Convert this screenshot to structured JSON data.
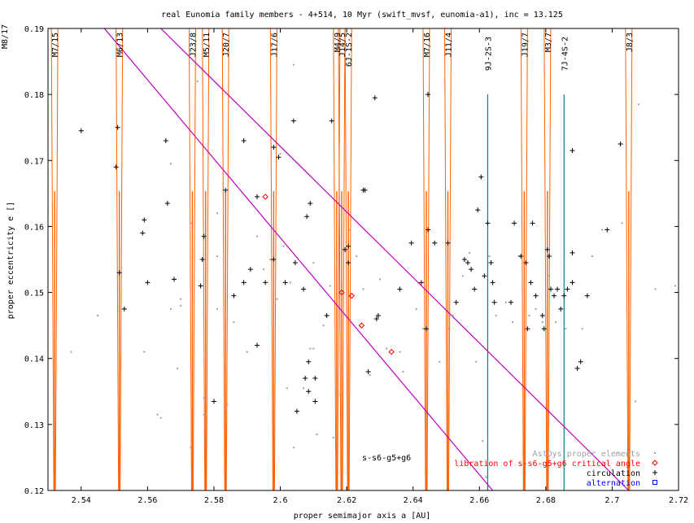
{
  "chart_data": {
    "type": "scatter",
    "title": "real Eunomia family members - 4+514, 10 Myr (swift_mvsf, eunomia-a1), inc = 13.125",
    "xlabel": "proper semimajor axis a [AU]",
    "ylabel": "proper eccentricity e []",
    "xlim": [
      2.53,
      2.72
    ],
    "ylim": [
      0.12,
      0.19
    ],
    "xticks": [
      "2.54",
      "2.56",
      "2.58",
      "2.6",
      "2.62",
      "2.64",
      "2.66",
      "2.68",
      "2.7",
      "2.72"
    ],
    "yticks": [
      "0.12",
      "0.13",
      "0.14",
      "0.15",
      "0.16",
      "0.17",
      "0.18",
      "0.19"
    ],
    "grid": false,
    "legend_position": "bottom-right",
    "colors": {
      "astdys": "#a0a0a0",
      "libration": "#ff0000",
      "circulation": "#000000",
      "alternation": "#0000ff",
      "resonance": "#ff6000",
      "secular": "#c000c0",
      "three_body": "#008080"
    },
    "series": [
      {
        "name": "AstDys proper elements",
        "marker": "dot",
        "points": [
          [
            2.532,
            0.1565
          ],
          [
            2.537,
            0.141
          ],
          [
            2.545,
            0.1465
          ],
          [
            2.559,
            0.141
          ],
          [
            2.563,
            0.1315
          ],
          [
            2.564,
            0.131
          ],
          [
            2.567,
            0.1475
          ],
          [
            2.567,
            0.1695
          ],
          [
            2.569,
            0.1385
          ],
          [
            2.57,
            0.148
          ],
          [
            2.57,
            0.149
          ],
          [
            2.573,
            0.1605
          ],
          [
            2.573,
            0.1265
          ],
          [
            2.575,
            0.182
          ],
          [
            2.577,
            0.134
          ],
          [
            2.577,
            0.1315
          ],
          [
            2.581,
            0.1555
          ],
          [
            2.581,
            0.1475
          ],
          [
            2.581,
            0.162
          ],
          [
            2.584,
            0.133
          ],
          [
            2.586,
            0.1455
          ],
          [
            2.59,
            0.141
          ],
          [
            2.593,
            0.1585
          ],
          [
            2.595,
            0.1535
          ],
          [
            2.597,
            0.155
          ],
          [
            2.599,
            0.149
          ],
          [
            2.6,
            0.171
          ],
          [
            2.601,
            0.157
          ],
          [
            2.602,
            0.1355
          ],
          [
            2.603,
            0.1515
          ],
          [
            2.604,
            0.1265
          ],
          [
            2.604,
            0.1845
          ],
          [
            2.607,
            0.1355
          ],
          [
            2.609,
            0.1415
          ],
          [
            2.61,
            0.1415
          ],
          [
            2.61,
            0.1545
          ],
          [
            2.611,
            0.1285
          ],
          [
            2.613,
            0.145
          ],
          [
            2.614,
            0.1465
          ],
          [
            2.615,
            0.151
          ],
          [
            2.616,
            0.128
          ],
          [
            2.617,
            0.1545
          ],
          [
            2.618,
            0.1345
          ],
          [
            2.621,
            0.1595
          ],
          [
            2.623,
            0.1555
          ],
          [
            2.625,
            0.1505
          ],
          [
            2.627,
            0.1375
          ],
          [
            2.63,
            0.152
          ],
          [
            2.632,
            0.1415
          ],
          [
            2.636,
            0.141
          ],
          [
            2.637,
            0.138
          ],
          [
            2.641,
            0.1475
          ],
          [
            2.643,
            0.1445
          ],
          [
            2.648,
            0.1395
          ],
          [
            2.651,
            0.1445
          ],
          [
            2.652,
            0.1465
          ],
          [
            2.655,
            0.1525
          ],
          [
            2.657,
            0.156
          ],
          [
            2.659,
            0.1395
          ],
          [
            2.661,
            0.1275
          ],
          [
            2.662,
            0.122
          ],
          [
            2.663,
            0.1555
          ],
          [
            2.665,
            0.1465
          ],
          [
            2.668,
            0.1485
          ],
          [
            2.67,
            0.1455
          ],
          [
            2.672,
            0.1555
          ],
          [
            2.675,
            0.1465
          ],
          [
            2.677,
            0.1475
          ],
          [
            2.679,
            0.1455
          ],
          [
            2.681,
            0.1525
          ],
          [
            2.683,
            0.1455
          ],
          [
            2.686,
            0.1445
          ],
          [
            2.691,
            0.1445
          ],
          [
            2.694,
            0.1555
          ],
          [
            2.697,
            0.1595
          ],
          [
            2.703,
            0.1605
          ],
          [
            2.707,
            0.1335
          ],
          [
            2.708,
            0.1785
          ],
          [
            2.713,
            0.1505
          ],
          [
            2.719,
            0.151
          ],
          [
            2.722,
            0.1525
          ]
        ]
      },
      {
        "name": "libration of s-s6-g5+g6 critical angle",
        "marker": "diamond",
        "points": [
          [
            2.5955,
            0.1645
          ],
          [
            2.6185,
            0.15
          ],
          [
            2.6215,
            0.1495
          ],
          [
            2.6245,
            0.145
          ],
          [
            2.6335,
            0.141
          ]
        ]
      },
      {
        "name": "circulation",
        "marker": "plus",
        "points": [
          [
            2.54,
            0.1745
          ],
          [
            2.5505,
            0.169
          ],
          [
            2.551,
            0.175
          ],
          [
            2.5515,
            0.153
          ],
          [
            2.553,
            0.1475
          ],
          [
            2.5585,
            0.159
          ],
          [
            2.559,
            0.161
          ],
          [
            2.56,
            0.1515
          ],
          [
            2.5655,
            0.173
          ],
          [
            2.566,
            0.1635
          ],
          [
            2.568,
            0.152
          ],
          [
            2.576,
            0.151
          ],
          [
            2.5765,
            0.155
          ],
          [
            2.577,
            0.1585
          ],
          [
            2.58,
            0.1335
          ],
          [
            2.5835,
            0.1655
          ],
          [
            2.586,
            0.1495
          ],
          [
            2.589,
            0.173
          ],
          [
            2.589,
            0.1515
          ],
          [
            2.591,
            0.1535
          ],
          [
            2.593,
            0.1645
          ],
          [
            2.593,
            0.142
          ],
          [
            2.5955,
            0.1515
          ],
          [
            2.598,
            0.155
          ],
          [
            2.598,
            0.172
          ],
          [
            2.5995,
            0.1705
          ],
          [
            2.6015,
            0.1515
          ],
          [
            2.604,
            0.176
          ],
          [
            2.6045,
            0.1545
          ],
          [
            2.605,
            0.132
          ],
          [
            2.607,
            0.1505
          ],
          [
            2.6075,
            0.137
          ],
          [
            2.608,
            0.1615
          ],
          [
            2.6085,
            0.1395
          ],
          [
            2.6085,
            0.135
          ],
          [
            2.609,
            0.1635
          ],
          [
            2.6105,
            0.137
          ],
          [
            2.6105,
            0.1335
          ],
          [
            2.614,
            0.1465
          ],
          [
            2.6155,
            0.176
          ],
          [
            2.6195,
            0.1565
          ],
          [
            2.6205,
            0.1545
          ],
          [
            2.6205,
            0.157
          ],
          [
            2.625,
            0.1655
          ],
          [
            2.6255,
            0.1655
          ],
          [
            2.6265,
            0.138
          ],
          [
            2.6285,
            0.1795
          ],
          [
            2.629,
            0.146
          ],
          [
            2.6295,
            0.1465
          ],
          [
            2.636,
            0.1505
          ],
          [
            2.6395,
            0.1575
          ],
          [
            2.6425,
            0.1515
          ],
          [
            2.644,
            0.1445
          ],
          [
            2.6445,
            0.18
          ],
          [
            2.6445,
            0.1595
          ],
          [
            2.6465,
            0.1575
          ],
          [
            2.6505,
            0.1575
          ],
          [
            2.653,
            0.1485
          ],
          [
            2.6555,
            0.155
          ],
          [
            2.6565,
            0.1545
          ],
          [
            2.6575,
            0.1535
          ],
          [
            2.6585,
            0.1505
          ],
          [
            2.6595,
            0.1625
          ],
          [
            2.6605,
            0.1675
          ],
          [
            2.6615,
            0.1525
          ],
          [
            2.6625,
            0.1605
          ],
          [
            2.6635,
            0.1545
          ],
          [
            2.664,
            0.1515
          ],
          [
            2.6645,
            0.1485
          ],
          [
            2.6695,
            0.1485
          ],
          [
            2.6705,
            0.1605
          ],
          [
            2.6725,
            0.1555
          ],
          [
            2.674,
            0.1545
          ],
          [
            2.6745,
            0.1445
          ],
          [
            2.6755,
            0.1515
          ],
          [
            2.676,
            0.1605
          ],
          [
            2.677,
            0.1495
          ],
          [
            2.679,
            0.1465
          ],
          [
            2.6795,
            0.1445
          ],
          [
            2.6805,
            0.1565
          ],
          [
            2.681,
            0.1555
          ],
          [
            2.6815,
            0.1505
          ],
          [
            2.6825,
            0.1495
          ],
          [
            2.6835,
            0.1505
          ],
          [
            2.6845,
            0.1475
          ],
          [
            2.6855,
            0.1495
          ],
          [
            2.6865,
            0.1505
          ],
          [
            2.688,
            0.1515
          ],
          [
            2.688,
            0.1715
          ],
          [
            2.6895,
            0.1385
          ],
          [
            2.6905,
            0.1395
          ],
          [
            2.6925,
            0.1495
          ],
          [
            2.7025,
            0.1725
          ],
          [
            2.6985,
            0.1595
          ],
          [
            2.688,
            0.156
          ]
        ]
      },
      {
        "name": "alternation",
        "marker": "square",
        "points": []
      }
    ],
    "resonance_lines": [
      {
        "label": "M7/15",
        "x": 2.532
      },
      {
        "label": "M6/13",
        "x": 2.5515
      },
      {
        "label": "J23/8",
        "x": 2.5735
      },
      {
        "label": "M5/11",
        "x": 2.5775
      },
      {
        "label": "J20/7",
        "x": 2.5835
      },
      {
        "label": "J17/6",
        "x": 2.598
      },
      {
        "label": "M4/9",
        "x": 2.617
      },
      {
        "label": "J14/5",
        "x": 2.6185
      },
      {
        "label": "6J-1S-2",
        "x": 2.6205
      },
      {
        "label": "M7/16",
        "x": 2.644
      },
      {
        "label": "J11/4",
        "x": 2.6505
      },
      {
        "label": "J19/7",
        "x": 2.6735
      },
      {
        "label": "M3/7",
        "x": 2.6805
      },
      {
        "label": "J8/3",
        "x": 2.705
      }
    ],
    "three_body_lines": [
      {
        "label": "9J-2S-3",
        "x": 2.6625
      },
      {
        "label": "7J-4S-2",
        "x": 2.6855
      }
    ],
    "top_left_clipped_label": "M8/17",
    "secular_resonance": {
      "label": "s-s6-g5+g6",
      "lines": [
        {
          "from": [
            2.547,
            0.19
          ],
          "to": [
            2.664,
            0.12
          ]
        },
        {
          "from": [
            2.564,
            0.19
          ],
          "to": [
            2.705,
            0.12
          ]
        }
      ]
    }
  }
}
